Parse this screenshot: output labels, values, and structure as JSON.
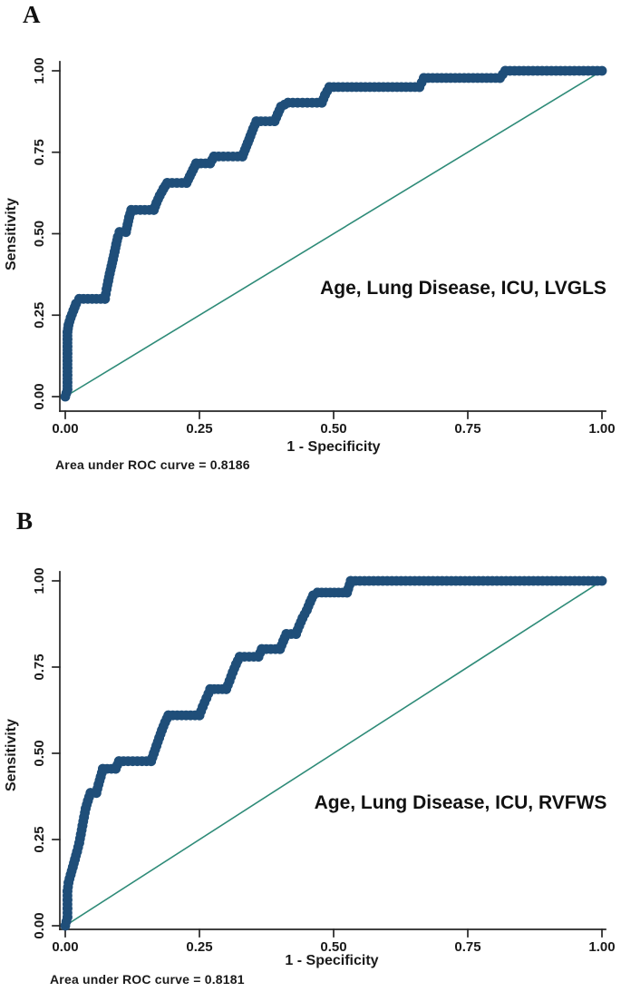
{
  "figure": {
    "background": "#ffffff",
    "description": "Two ROC curve panels"
  },
  "chart_data": [
    {
      "type": "line",
      "subtype": "roc-staircase",
      "panel_label": "A",
      "annotation": "Age, Lung Disease, ICU, LVGLS",
      "auc_label": "Area under ROC curve = 0.8186",
      "auc_value": 0.8186,
      "xlabel": "1 - Specificity",
      "ylabel": "Sensitivity",
      "xlim": [
        0,
        1
      ],
      "ylim": [
        0,
        1
      ],
      "x_ticks": [
        "0.00",
        "0.25",
        "0.50",
        "0.75",
        "1.00"
      ],
      "y_ticks": [
        "0.00",
        "0.25",
        "0.50",
        "0.75",
        "1.00"
      ],
      "grid": false,
      "legend": "none",
      "reference_line": "diagonal",
      "colors": {
        "roc_curve": "#1f4e79",
        "reference_line": "#2e8b78",
        "axis": "#262626",
        "text": "#1a1a1a"
      },
      "roc_points": [
        [
          0.0,
          0.0
        ],
        [
          0.004,
          0.022
        ],
        [
          0.004,
          0.044
        ],
        [
          0.004,
          0.066
        ],
        [
          0.004,
          0.088
        ],
        [
          0.004,
          0.11
        ],
        [
          0.004,
          0.132
        ],
        [
          0.004,
          0.154
        ],
        [
          0.004,
          0.176
        ],
        [
          0.004,
          0.198
        ],
        [
          0.006,
          0.22
        ],
        [
          0.01,
          0.242
        ],
        [
          0.015,
          0.264
        ],
        [
          0.02,
          0.285
        ],
        [
          0.026,
          0.3
        ],
        [
          0.074,
          0.3
        ],
        [
          0.077,
          0.33
        ],
        [
          0.08,
          0.355
        ],
        [
          0.083,
          0.378
        ],
        [
          0.086,
          0.4
        ],
        [
          0.089,
          0.422
        ],
        [
          0.092,
          0.445
        ],
        [
          0.095,
          0.468
        ],
        [
          0.098,
          0.49
        ],
        [
          0.101,
          0.505
        ],
        [
          0.113,
          0.505
        ],
        [
          0.116,
          0.528
        ],
        [
          0.119,
          0.55
        ],
        [
          0.123,
          0.573
        ],
        [
          0.165,
          0.573
        ],
        [
          0.17,
          0.595
        ],
        [
          0.176,
          0.617
        ],
        [
          0.183,
          0.638
        ],
        [
          0.19,
          0.656
        ],
        [
          0.226,
          0.656
        ],
        [
          0.232,
          0.676
        ],
        [
          0.238,
          0.696
        ],
        [
          0.244,
          0.716
        ],
        [
          0.27,
          0.716
        ],
        [
          0.277,
          0.737
        ],
        [
          0.33,
          0.737
        ],
        [
          0.335,
          0.758
        ],
        [
          0.34,
          0.779
        ],
        [
          0.345,
          0.8
        ],
        [
          0.35,
          0.822
        ],
        [
          0.356,
          0.845
        ],
        [
          0.39,
          0.845
        ],
        [
          0.396,
          0.868
        ],
        [
          0.402,
          0.89
        ],
        [
          0.415,
          0.902
        ],
        [
          0.478,
          0.902
        ],
        [
          0.484,
          0.926
        ],
        [
          0.492,
          0.95
        ],
        [
          0.66,
          0.95
        ],
        [
          0.668,
          0.978
        ],
        [
          0.81,
          0.978
        ],
        [
          0.82,
          1.0
        ],
        [
          1.0,
          1.0
        ]
      ]
    },
    {
      "type": "line",
      "subtype": "roc-staircase",
      "panel_label": "B",
      "annotation": "Age, Lung Disease, ICU, RVFWS",
      "auc_label": "Area under ROC curve = 0.8181",
      "auc_value": 0.8181,
      "xlabel": "1 - Specificity",
      "ylabel": "Sensitivity",
      "xlim": [
        0,
        1
      ],
      "ylim": [
        0,
        1
      ],
      "x_ticks": [
        "0.00",
        "0.25",
        "0.50",
        "0.75",
        "1.00"
      ],
      "y_ticks": [
        "0.00",
        "0.25",
        "0.50",
        "0.75",
        "1.00"
      ],
      "grid": false,
      "legend": "none",
      "reference_line": "diagonal",
      "colors": {
        "roc_curve": "#1f4e79",
        "reference_line": "#2e8b78",
        "axis": "#262626",
        "text": "#1a1a1a"
      },
      "roc_points": [
        [
          0.0,
          0.0
        ],
        [
          0.004,
          0.025
        ],
        [
          0.004,
          0.05
        ],
        [
          0.004,
          0.075
        ],
        [
          0.004,
          0.1
        ],
        [
          0.006,
          0.125
        ],
        [
          0.01,
          0.148
        ],
        [
          0.014,
          0.17
        ],
        [
          0.018,
          0.193
        ],
        [
          0.022,
          0.215
        ],
        [
          0.026,
          0.24
        ],
        [
          0.029,
          0.265
        ],
        [
          0.032,
          0.29
        ],
        [
          0.035,
          0.315
        ],
        [
          0.038,
          0.34
        ],
        [
          0.042,
          0.362
        ],
        [
          0.047,
          0.385
        ],
        [
          0.058,
          0.385
        ],
        [
          0.062,
          0.41
        ],
        [
          0.066,
          0.432
        ],
        [
          0.07,
          0.455
        ],
        [
          0.094,
          0.455
        ],
        [
          0.1,
          0.477
        ],
        [
          0.16,
          0.477
        ],
        [
          0.165,
          0.5
        ],
        [
          0.17,
          0.522
        ],
        [
          0.175,
          0.545
        ],
        [
          0.18,
          0.567
        ],
        [
          0.186,
          0.59
        ],
        [
          0.192,
          0.61
        ],
        [
          0.25,
          0.61
        ],
        [
          0.256,
          0.635
        ],
        [
          0.263,
          0.66
        ],
        [
          0.27,
          0.686
        ],
        [
          0.3,
          0.686
        ],
        [
          0.306,
          0.71
        ],
        [
          0.312,
          0.735
        ],
        [
          0.318,
          0.758
        ],
        [
          0.325,
          0.78
        ],
        [
          0.36,
          0.78
        ],
        [
          0.366,
          0.802
        ],
        [
          0.4,
          0.802
        ],
        [
          0.406,
          0.825
        ],
        [
          0.412,
          0.846
        ],
        [
          0.43,
          0.846
        ],
        [
          0.436,
          0.87
        ],
        [
          0.442,
          0.892
        ],
        [
          0.45,
          0.915
        ],
        [
          0.456,
          0.938
        ],
        [
          0.462,
          0.958
        ],
        [
          0.47,
          0.966
        ],
        [
          0.525,
          0.966
        ],
        [
          0.532,
          1.0
        ],
        [
          1.0,
          1.0
        ]
      ]
    }
  ]
}
